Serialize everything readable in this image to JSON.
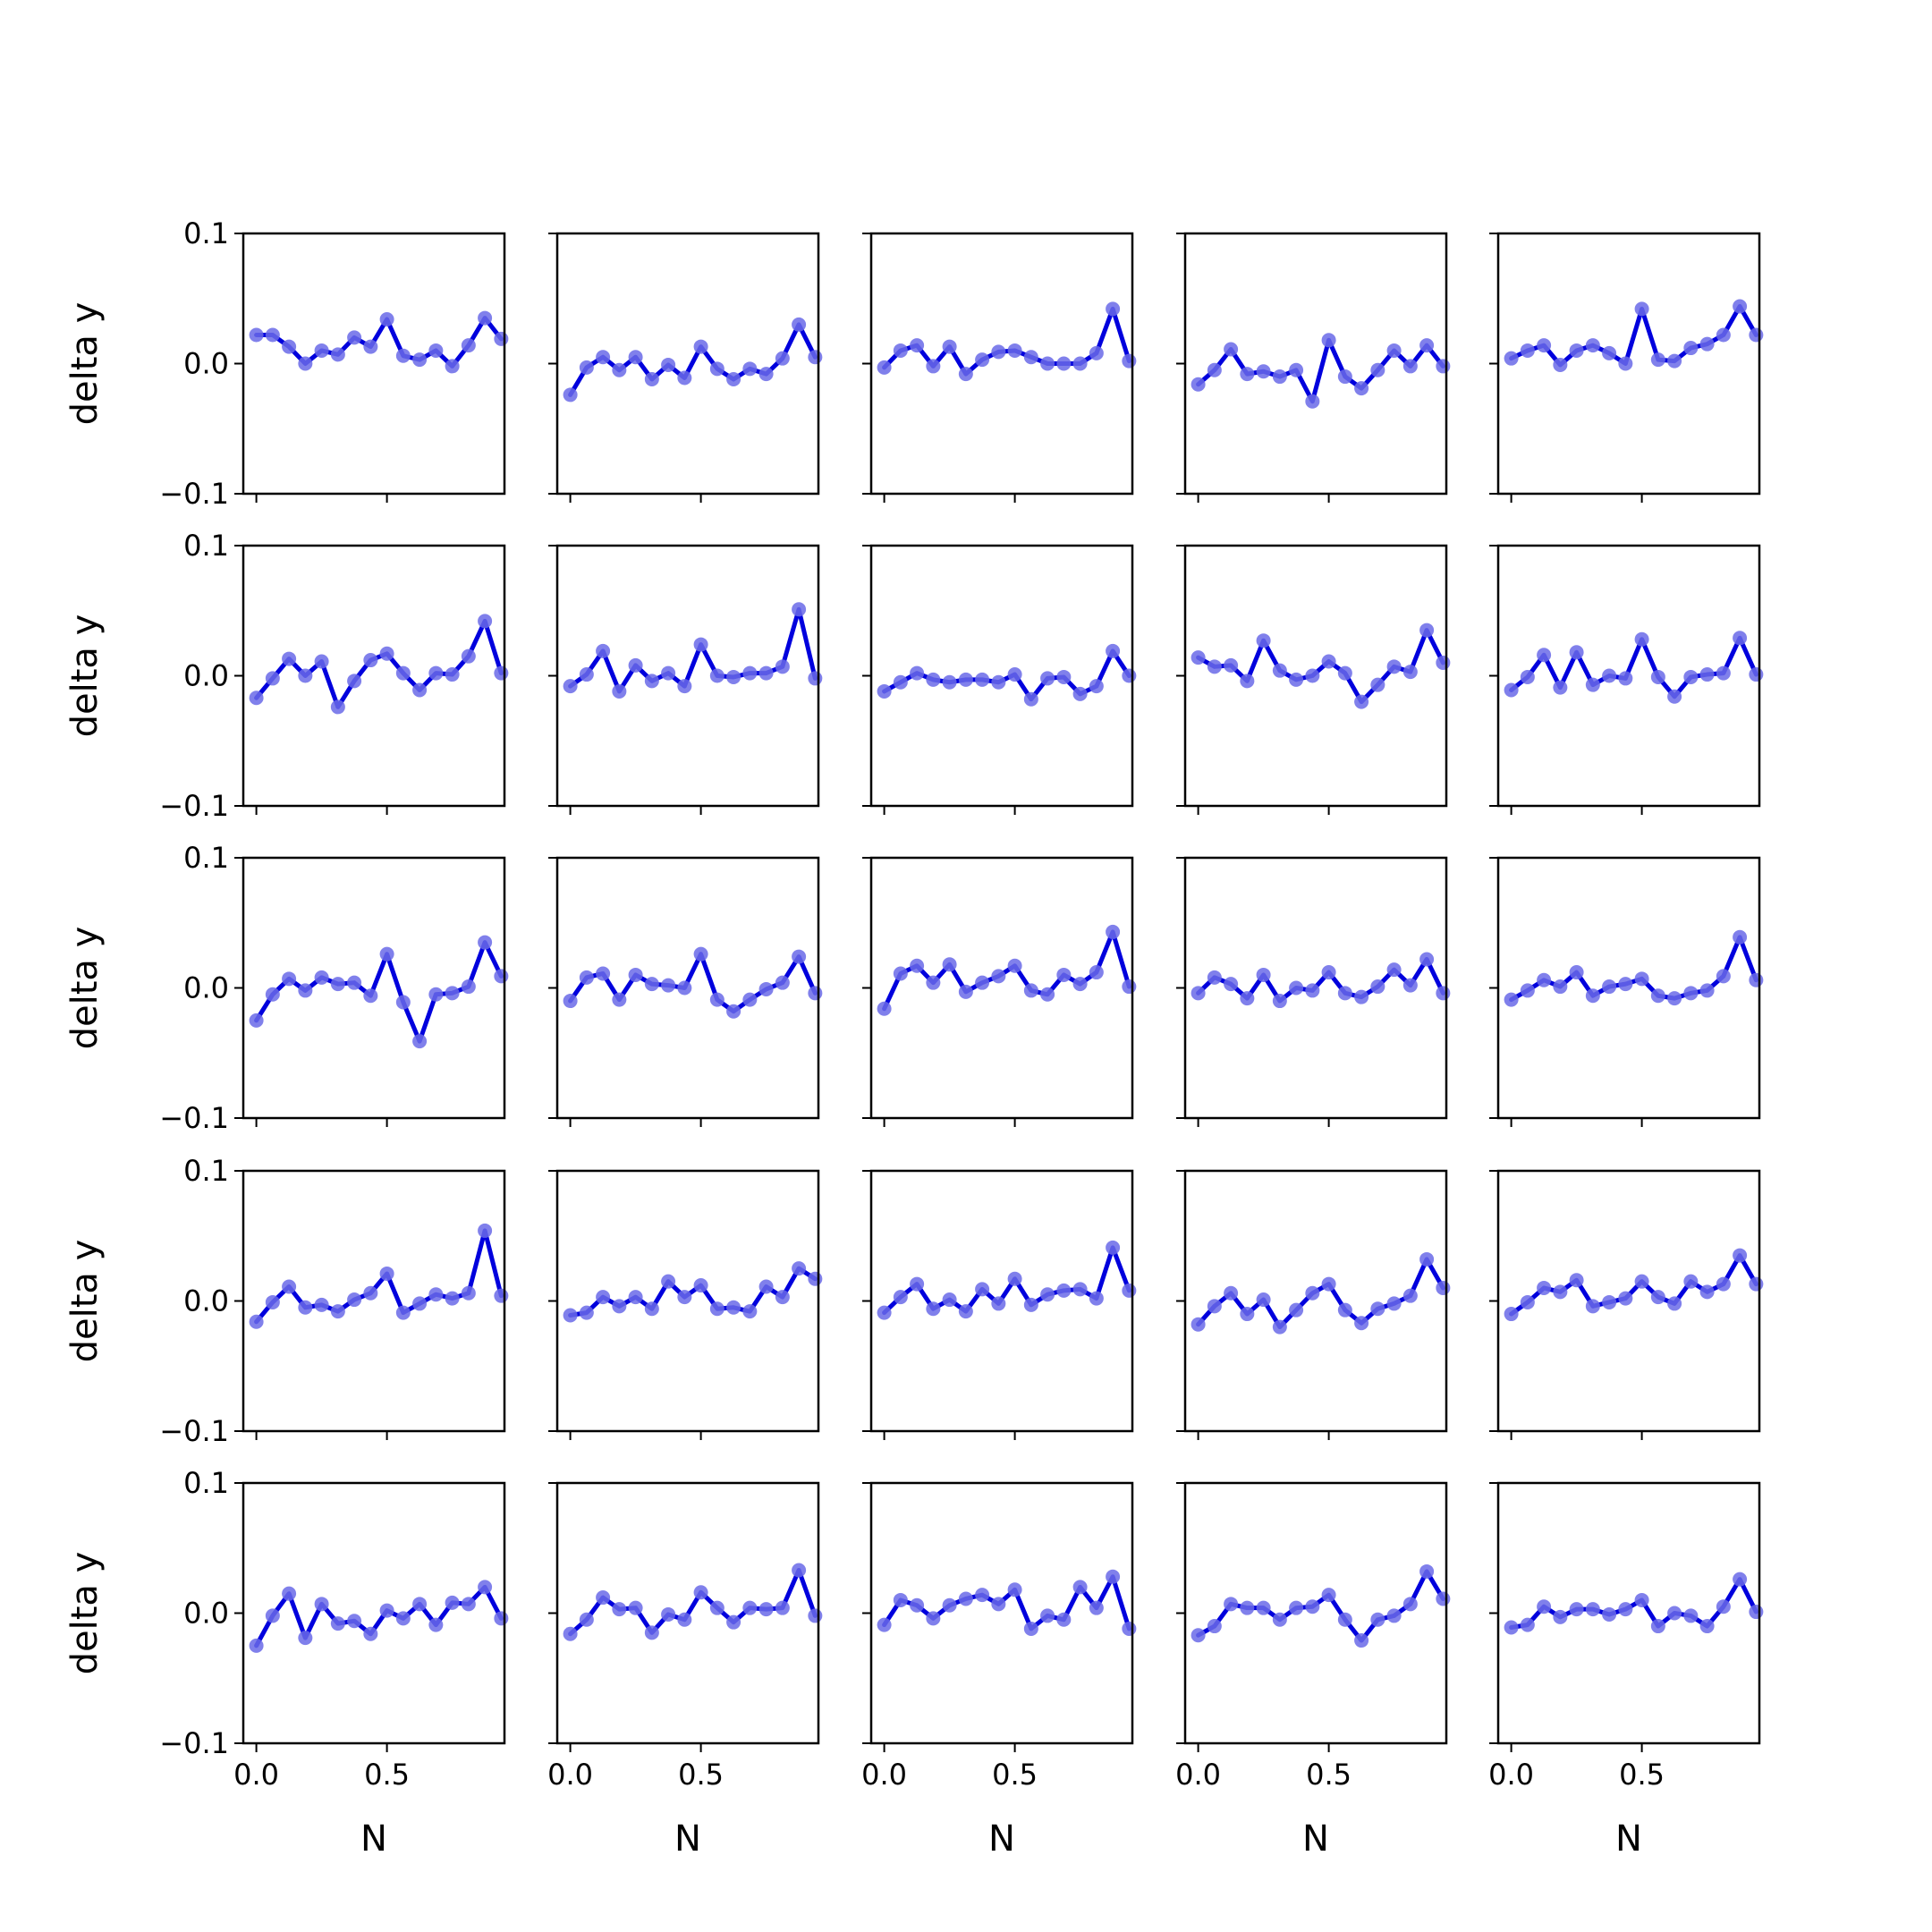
{
  "figure": {
    "background": "#ffffff"
  },
  "chart_data": {
    "type": "line",
    "layout": {
      "rows": 5,
      "cols": 5
    },
    "shared": {
      "x": [
        0.0,
        0.0625,
        0.125,
        0.1875,
        0.25,
        0.3125,
        0.375,
        0.4375,
        0.5,
        0.5625,
        0.625,
        0.6875,
        0.75,
        0.8125,
        0.875,
        0.9375
      ],
      "xlim": [
        -0.05,
        0.95
      ],
      "ylim": [
        -0.1,
        0.1
      ],
      "xticks": [
        0.0,
        0.5
      ],
      "xtick_labels": [
        "0.0",
        "0.5"
      ],
      "yticks": [
        -0.1,
        0.0,
        0.1
      ],
      "ytick_labels": [
        "−0.1",
        "0.0",
        "0.1"
      ],
      "xlabel": "N",
      "ylabel": "delta y",
      "line_color": "#0000dd",
      "marker_color": "#6a6ae8",
      "grid": false,
      "legend": false
    },
    "panels": [
      {
        "values": [
          0.022,
          0.022,
          0.013,
          0.0,
          0.01,
          0.007,
          0.02,
          0.013,
          0.034,
          0.006,
          0.003,
          0.01,
          -0.002,
          0.014,
          0.035,
          0.019
        ]
      },
      {
        "values": [
          -0.024,
          -0.003,
          0.005,
          -0.005,
          0.005,
          -0.012,
          -0.001,
          -0.011,
          0.013,
          -0.004,
          -0.012,
          -0.004,
          -0.008,
          0.004,
          0.03,
          0.005
        ]
      },
      {
        "values": [
          -0.003,
          0.01,
          0.014,
          -0.002,
          0.013,
          -0.008,
          0.003,
          0.009,
          0.01,
          0.005,
          0.0,
          0.0,
          0.0,
          0.008,
          0.042,
          0.002
        ]
      },
      {
        "values": [
          -0.016,
          -0.005,
          0.011,
          -0.008,
          -0.006,
          -0.01,
          -0.005,
          -0.029,
          0.018,
          -0.01,
          -0.019,
          -0.005,
          0.01,
          -0.002,
          0.014,
          -0.002
        ]
      },
      {
        "values": [
          0.004,
          0.01,
          0.014,
          -0.001,
          0.01,
          0.014,
          0.008,
          0.0,
          0.042,
          0.003,
          0.002,
          0.012,
          0.015,
          0.022,
          0.044,
          0.022
        ]
      },
      {
        "values": [
          -0.017,
          -0.002,
          0.013,
          0.0,
          0.011,
          -0.024,
          -0.004,
          0.012,
          0.017,
          0.002,
          -0.011,
          0.002,
          0.001,
          0.015,
          0.042,
          0.002
        ]
      },
      {
        "values": [
          -0.008,
          0.001,
          0.019,
          -0.012,
          0.008,
          -0.004,
          0.002,
          -0.008,
          0.024,
          0.0,
          -0.001,
          0.002,
          0.002,
          0.007,
          0.051,
          -0.002
        ]
      },
      {
        "values": [
          -0.012,
          -0.005,
          0.002,
          -0.003,
          -0.005,
          -0.003,
          -0.003,
          -0.005,
          0.001,
          -0.018,
          -0.002,
          -0.001,
          -0.014,
          -0.008,
          0.019,
          0.0
        ]
      },
      {
        "values": [
          0.014,
          0.007,
          0.008,
          -0.004,
          0.027,
          0.004,
          -0.003,
          0.0,
          0.011,
          0.002,
          -0.02,
          -0.007,
          0.007,
          0.003,
          0.035,
          0.01
        ]
      },
      {
        "values": [
          -0.011,
          -0.001,
          0.016,
          -0.009,
          0.018,
          -0.007,
          0.0,
          -0.002,
          0.028,
          -0.001,
          -0.016,
          -0.001,
          0.001,
          0.002,
          0.029,
          0.001
        ]
      },
      {
        "values": [
          -0.025,
          -0.005,
          0.007,
          -0.002,
          0.008,
          0.003,
          0.004,
          -0.006,
          0.026,
          -0.011,
          -0.041,
          -0.005,
          -0.004,
          0.001,
          0.035,
          0.009
        ]
      },
      {
        "values": [
          -0.01,
          0.008,
          0.011,
          -0.009,
          0.01,
          0.003,
          0.002,
          0.0,
          0.026,
          -0.009,
          -0.018,
          -0.009,
          -0.001,
          0.004,
          0.024,
          -0.004
        ]
      },
      {
        "values": [
          -0.016,
          0.011,
          0.017,
          0.004,
          0.018,
          -0.003,
          0.004,
          0.009,
          0.017,
          -0.002,
          -0.005,
          0.01,
          0.003,
          0.012,
          0.043,
          0.001
        ]
      },
      {
        "values": [
          -0.004,
          0.008,
          0.003,
          -0.008,
          0.01,
          -0.01,
          0.0,
          -0.002,
          0.012,
          -0.004,
          -0.007,
          0.001,
          0.014,
          0.002,
          0.022,
          -0.004
        ]
      },
      {
        "values": [
          -0.009,
          -0.002,
          0.006,
          0.001,
          0.012,
          -0.006,
          0.001,
          0.003,
          0.007,
          -0.006,
          -0.008,
          -0.004,
          -0.002,
          0.009,
          0.039,
          0.006
        ]
      },
      {
        "values": [
          -0.016,
          -0.001,
          0.011,
          -0.005,
          -0.003,
          -0.008,
          0.001,
          0.006,
          0.021,
          -0.009,
          -0.002,
          0.005,
          0.002,
          0.006,
          0.054,
          0.004
        ]
      },
      {
        "values": [
          -0.011,
          -0.009,
          0.003,
          -0.004,
          0.003,
          -0.006,
          0.015,
          0.003,
          0.012,
          -0.006,
          -0.005,
          -0.008,
          0.011,
          0.003,
          0.025,
          0.017
        ]
      },
      {
        "values": [
          -0.009,
          0.003,
          0.013,
          -0.006,
          0.001,
          -0.008,
          0.009,
          -0.002,
          0.017,
          -0.003,
          0.005,
          0.008,
          0.009,
          0.002,
          0.041,
          0.008
        ]
      },
      {
        "values": [
          -0.018,
          -0.004,
          0.006,
          -0.01,
          0.001,
          -0.02,
          -0.007,
          0.006,
          0.013,
          -0.007,
          -0.017,
          -0.006,
          -0.002,
          0.004,
          0.032,
          0.01
        ]
      },
      {
        "values": [
          -0.01,
          -0.001,
          0.01,
          0.007,
          0.016,
          -0.004,
          -0.001,
          0.002,
          0.015,
          0.003,
          -0.002,
          0.015,
          0.007,
          0.013,
          0.035,
          0.013
        ]
      },
      {
        "values": [
          -0.025,
          -0.002,
          0.015,
          -0.019,
          0.007,
          -0.008,
          -0.006,
          -0.016,
          0.002,
          -0.004,
          0.007,
          -0.009,
          0.008,
          0.007,
          0.02,
          -0.004
        ]
      },
      {
        "values": [
          -0.016,
          -0.005,
          0.012,
          0.003,
          0.004,
          -0.015,
          -0.001,
          -0.005,
          0.016,
          0.004,
          -0.007,
          0.004,
          0.003,
          0.004,
          0.033,
          -0.002
        ]
      },
      {
        "values": [
          -0.009,
          0.01,
          0.006,
          -0.004,
          0.006,
          0.011,
          0.014,
          0.007,
          0.018,
          -0.012,
          -0.002,
          -0.005,
          0.02,
          0.004,
          0.028,
          -0.012
        ]
      },
      {
        "values": [
          -0.017,
          -0.01,
          0.007,
          0.004,
          0.004,
          -0.005,
          0.004,
          0.005,
          0.014,
          -0.005,
          -0.021,
          -0.005,
          -0.002,
          0.007,
          0.032,
          0.011
        ]
      },
      {
        "values": [
          -0.011,
          -0.009,
          0.005,
          -0.003,
          0.003,
          0.003,
          -0.001,
          0.003,
          0.01,
          -0.01,
          0.0,
          -0.002,
          -0.01,
          0.005,
          0.026,
          0.001
        ]
      }
    ]
  }
}
